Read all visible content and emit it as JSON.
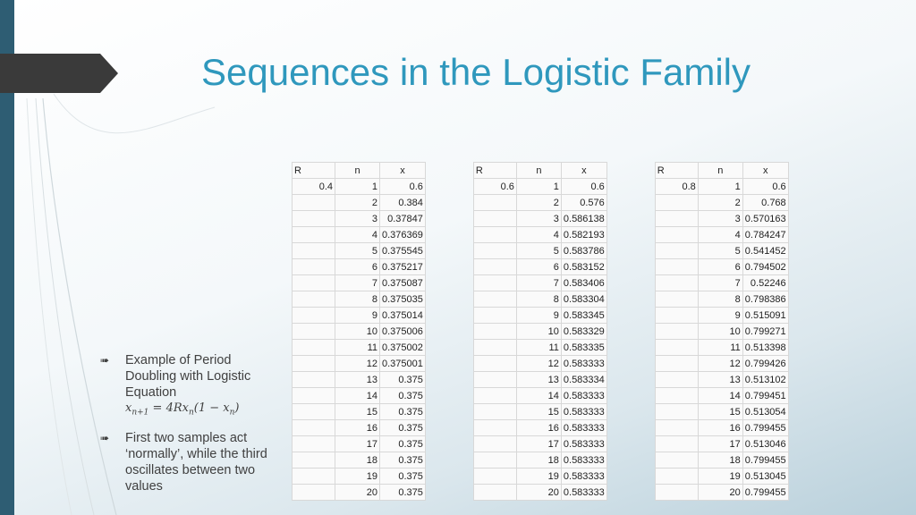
{
  "slide": {
    "title": "Sequences in the Logistic Family",
    "bullets": [
      {
        "text": "Example of Period Doubling with Logistic Equation"
      },
      {
        "text": "First two samples act ‘normally’, while the third oscillates between two values"
      }
    ],
    "equation": {
      "lhs_var": "x",
      "lhs_sub": "n+1",
      "rhs": "4Rx",
      "rhs_sub": "n",
      "paren_open": "(1 − x",
      "paren_sub": "n",
      "paren_close": ")",
      "eq": " = "
    }
  },
  "table": {
    "headers": [
      "R",
      "n",
      "x",
      "R",
      "n",
      "x",
      "R",
      "n",
      "x"
    ],
    "R_values": [
      "0.4",
      "0.6",
      "0.8"
    ],
    "n": [
      "1",
      "2",
      "3",
      "4",
      "5",
      "6",
      "7",
      "8",
      "9",
      "10",
      "11",
      "12",
      "13",
      "14",
      "15",
      "16",
      "17",
      "18",
      "19",
      "20"
    ],
    "x1": [
      "0.6",
      "0.384",
      "0.37847",
      "0.376369",
      "0.375545",
      "0.375217",
      "0.375087",
      "0.375035",
      "0.375014",
      "0.375006",
      "0.375002",
      "0.375001",
      "0.375",
      "0.375",
      "0.375",
      "0.375",
      "0.375",
      "0.375",
      "0.375",
      "0.375"
    ],
    "x2": [
      "0.6",
      "0.576",
      "0.586138",
      "0.582193",
      "0.583786",
      "0.583152",
      "0.583406",
      "0.583304",
      "0.583345",
      "0.583329",
      "0.583335",
      "0.583333",
      "0.583334",
      "0.583333",
      "0.583333",
      "0.583333",
      "0.583333",
      "0.583333",
      "0.583333",
      "0.583333"
    ],
    "x3": [
      "0.6",
      "0.768",
      "0.570163",
      "0.784247",
      "0.541452",
      "0.794502",
      "0.52246",
      "0.798386",
      "0.515091",
      "0.799271",
      "0.513398",
      "0.799426",
      "0.513102",
      "0.799451",
      "0.513054",
      "0.799455",
      "0.513046",
      "0.799455",
      "0.513045",
      "0.799455"
    ]
  }
}
